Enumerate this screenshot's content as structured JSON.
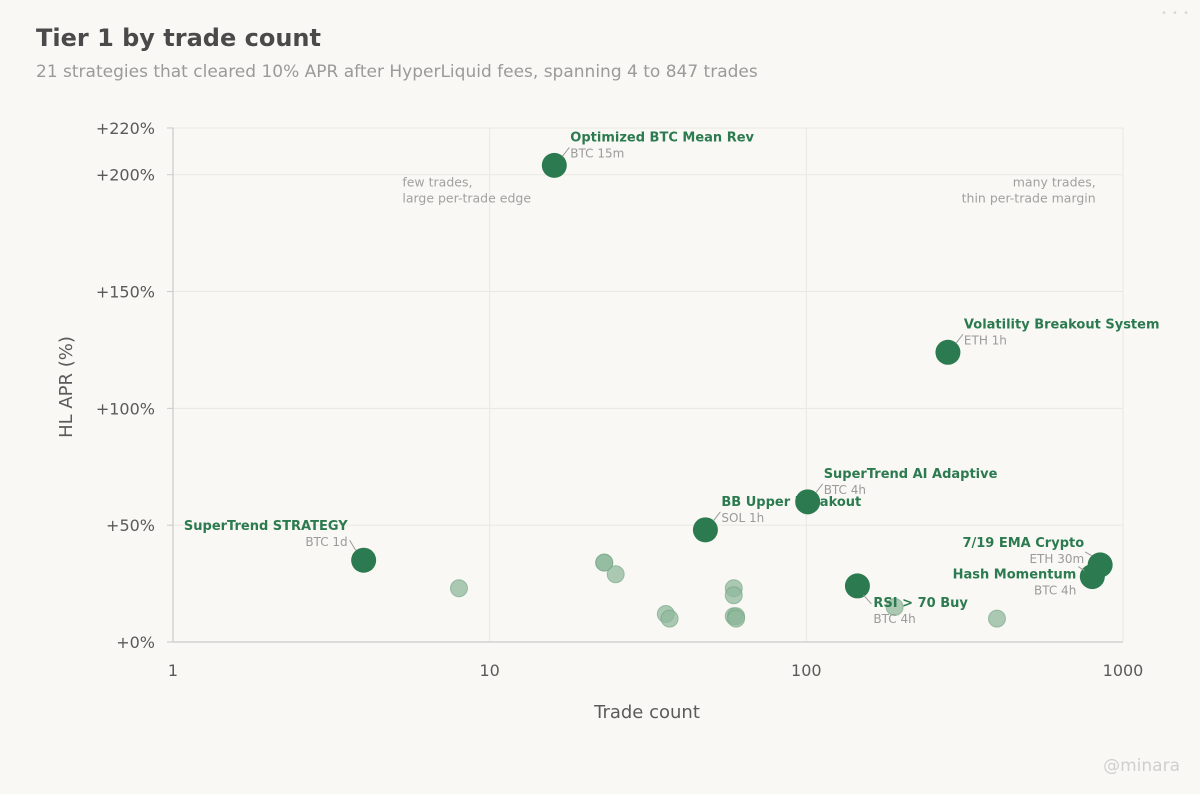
{
  "header": {
    "title": "Tier 1 by trade count",
    "subtitle": "21 strategies that cleared 10% APR after HyperLiquid fees, spanning 4 to 847 trades"
  },
  "watermark": "@minara",
  "colors": {
    "highlight": "#2c7a4f",
    "muted": "#8fb89c",
    "grid": "#e9e7e1",
    "axis": "#c9c9c9"
  },
  "chart_data": {
    "type": "scatter",
    "xscale": "log",
    "xlabel": "Trade count",
    "ylabel": "HL APR (%)",
    "xlim": [
      1,
      1000
    ],
    "ylim": [
      0,
      220
    ],
    "xticks": [
      {
        "value": 1,
        "label": "1"
      },
      {
        "value": 10,
        "label": "10"
      },
      {
        "value": 100,
        "label": "100"
      },
      {
        "value": 1000,
        "label": "1000"
      }
    ],
    "yticks": [
      {
        "value": 0,
        "label": "+0%"
      },
      {
        "value": 50,
        "label": "+50%"
      },
      {
        "value": 100,
        "label": "+100%"
      },
      {
        "value": 150,
        "label": "+150%"
      },
      {
        "value": 200,
        "label": "+200%"
      },
      {
        "value": 220,
        "label": "+220%"
      }
    ],
    "grid": true,
    "annotations": [
      {
        "lines": [
          "few trades,",
          "large per-trade edge"
        ],
        "x": 5.3,
        "y": 195,
        "anchor": "start"
      },
      {
        "lines": [
          "many trades,",
          "thin per-trade margin"
        ],
        "x": 820,
        "y": 195,
        "anchor": "end"
      }
    ],
    "highlighted": [
      {
        "name": "Optimized BTC Mean Rev",
        "sub": "BTC 15m",
        "x": 16,
        "y": 204,
        "label_side": "right"
      },
      {
        "name": "Volatility Breakout System",
        "sub": "ETH 1h",
        "x": 280,
        "y": 124,
        "label_side": "right"
      },
      {
        "name": "SuperTrend AI Adaptive",
        "sub": "BTC 4h",
        "x": 101,
        "y": 60,
        "label_side": "right"
      },
      {
        "name": "BB Upper Breakout",
        "sub": "SOL 1h",
        "x": 48,
        "y": 48,
        "label_side": "right"
      },
      {
        "name": "SuperTrend STRATEGY",
        "sub": "BTC 1d",
        "x": 4,
        "y": 35,
        "label_side": "left"
      },
      {
        "name": "7/19 EMA Crypto",
        "sub": "ETH 30m",
        "x": 847,
        "y": 33,
        "label_side": "left"
      },
      {
        "name": "Hash Momentum",
        "sub": "BTC 4h",
        "x": 800,
        "y": 28,
        "label_side": "left"
      },
      {
        "name": "RSI > 70 Buy",
        "sub": "BTC 4h",
        "x": 145,
        "y": 24,
        "label_side": "below"
      }
    ],
    "others": [
      {
        "x": 8,
        "y": 23
      },
      {
        "x": 23,
        "y": 34
      },
      {
        "x": 25,
        "y": 29
      },
      {
        "x": 36,
        "y": 12
      },
      {
        "x": 37,
        "y": 10
      },
      {
        "x": 59,
        "y": 23
      },
      {
        "x": 59,
        "y": 20
      },
      {
        "x": 59,
        "y": 11
      },
      {
        "x": 60,
        "y": 11
      },
      {
        "x": 190,
        "y": 15
      },
      {
        "x": 400,
        "y": 10
      },
      {
        "x": 23,
        "y": 34
      },
      {
        "x": 60,
        "y": 10
      }
    ]
  }
}
